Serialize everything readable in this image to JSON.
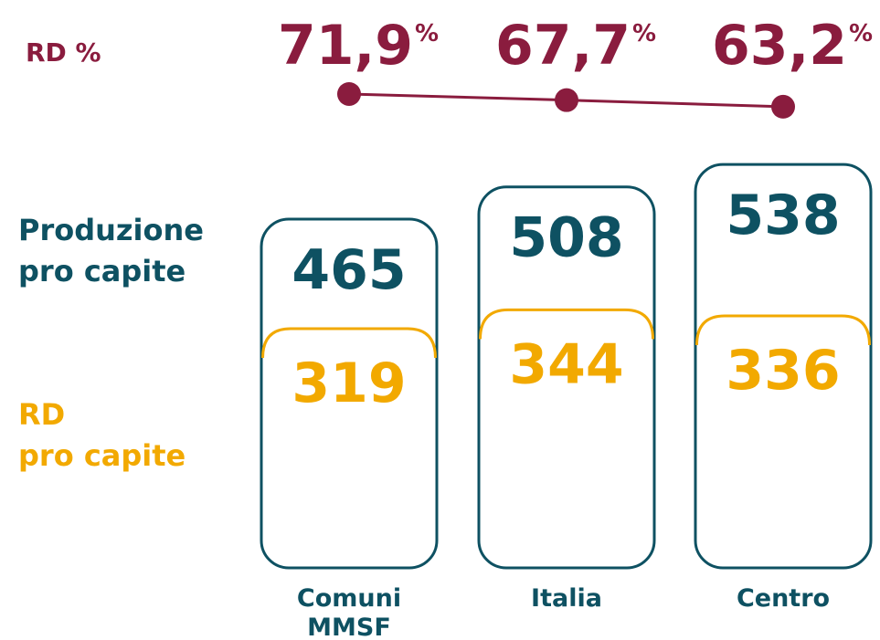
{
  "chart_data": {
    "type": "bar",
    "categories": [
      "Comuni\nMMSF",
      "Italia",
      "Centro"
    ],
    "series": [
      {
        "name": "Produzione\npro capite",
        "color": "#0e5162",
        "values": [
          465,
          508,
          538
        ]
      },
      {
        "name": "RD\npro capite",
        "color": "#f2a900",
        "values": [
          319,
          344,
          336
        ]
      },
      {
        "name": "RD %",
        "color": "#8a1c3e",
        "values": [
          71.9,
          67.7,
          63.2
        ],
        "value_labels": [
          "71,9",
          "67,7",
          "63,2"
        ],
        "unit": "%",
        "axis": "y2"
      }
    ],
    "ylim": [
      0,
      560
    ],
    "y2lim": [
      60,
      75
    ]
  }
}
